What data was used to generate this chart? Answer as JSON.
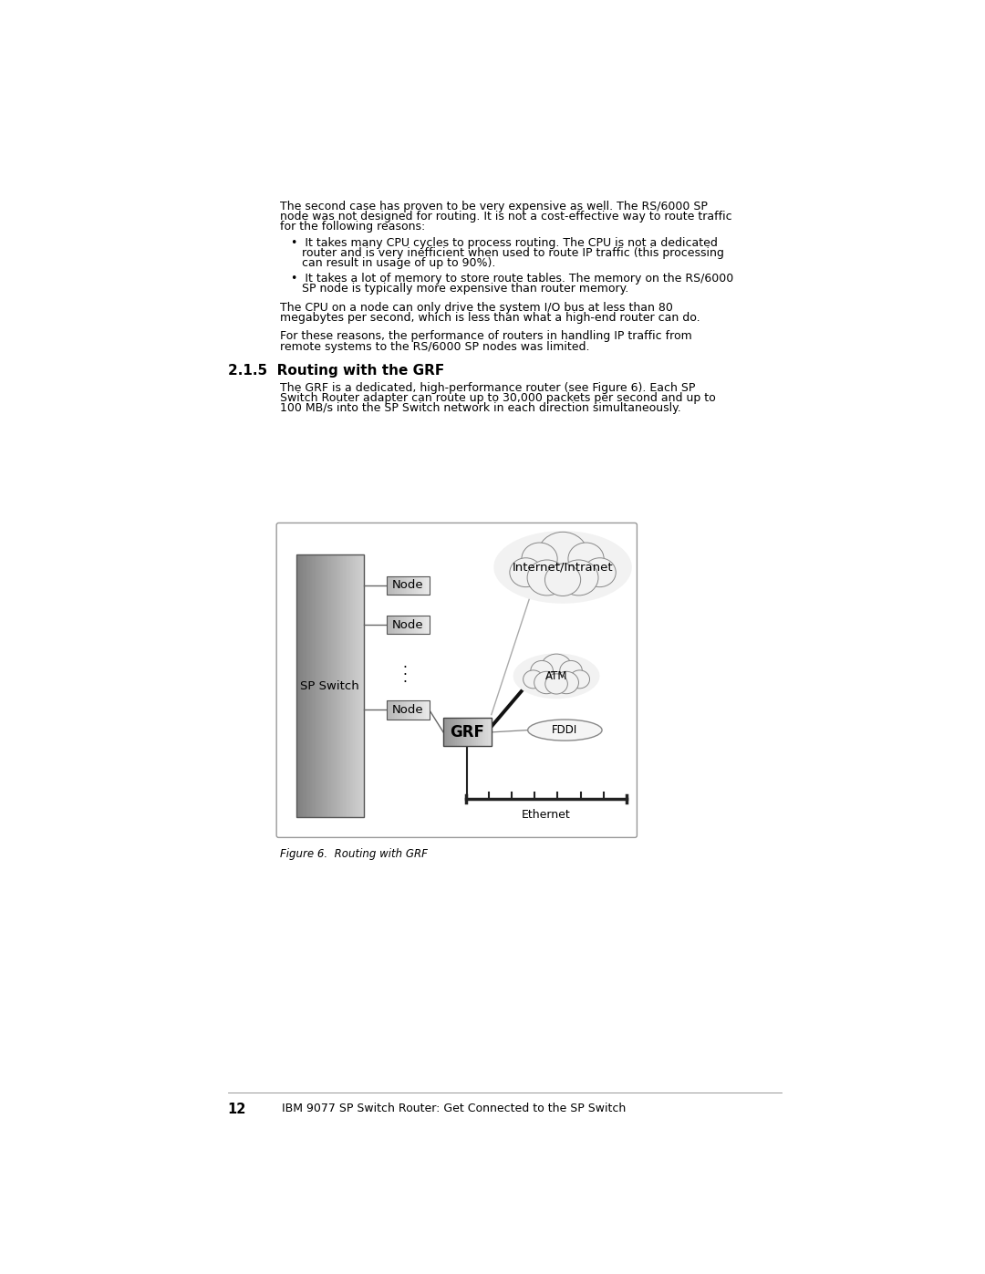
{
  "bg_color": "#ffffff",
  "page_width": 10.8,
  "page_height": 13.97,
  "text_color": "#000000",
  "para1_line1": "The second case has proven to be very expensive as well. The RS/6000 SP",
  "para1_line2": "node was not designed for routing. It is not a cost-effective way to route traffic",
  "para1_line3": "for the following reasons:",
  "bullet1_line1": "•  It takes many CPU cycles to process routing. The CPU is not a dedicated",
  "bullet1_line2": "   router and is very inefficient when used to route IP traffic (this processing",
  "bullet1_line3": "   can result in usage of up to 90%).",
  "bullet2_line1": "•  It takes a lot of memory to store route tables. The memory on the RS/6000",
  "bullet2_line2": "   SP node is typically more expensive than router memory.",
  "para2_line1": "The CPU on a node can only drive the system I/O bus at less than 80",
  "para2_line2": "megabytes per second, which is less than what a high-end router can do.",
  "para3_line1": "For these reasons, the performance of routers in handling IP traffic from",
  "para3_line2": "remote systems to the RS/6000 SP nodes was limited.",
  "section_heading": "2.1.5  Routing with the GRF",
  "sec_para_line1": "The GRF is a dedicated, high-performance router (see Figure 6). Each SP",
  "sec_para_line2": "Switch Router adapter can route up to 30,000 packets per second and up to",
  "sec_para_line3": "100 MB/s into the SP Switch network in each direction simultaneously.",
  "fig_caption": "Figure 6.  Routing with GRF",
  "footer_num": "12",
  "footer_text": "IBM 9077 SP Switch Router: Get Connected to the SP Switch"
}
